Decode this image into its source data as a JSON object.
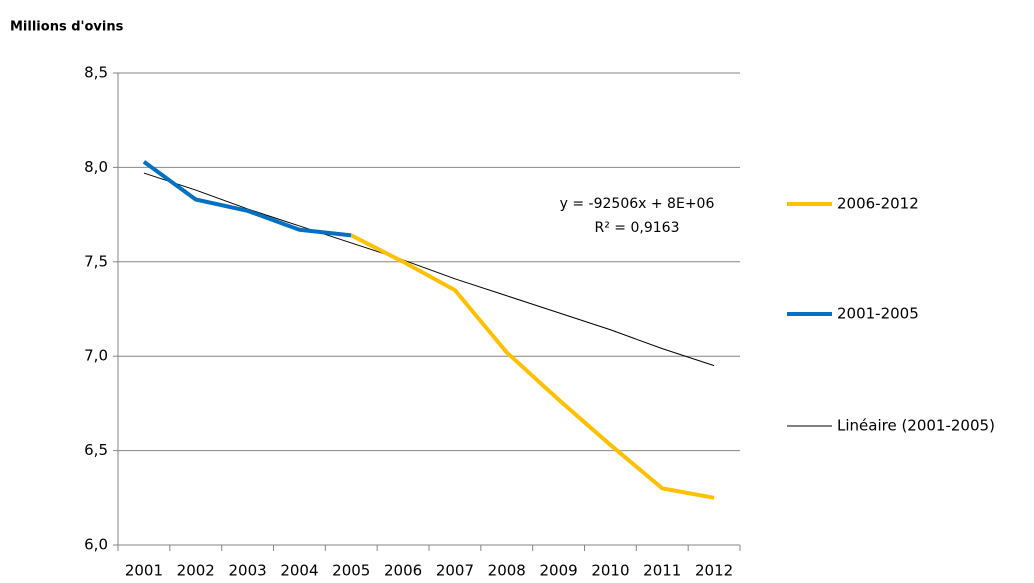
{
  "chart_data": {
    "type": "line",
    "title": "Millions d'ovins",
    "categories": [
      "2001",
      "2002",
      "2003",
      "2004",
      "2005",
      "2006",
      "2007",
      "2008",
      "2009",
      "2010",
      "2011",
      "2012"
    ],
    "series": [
      {
        "name": "2006-2012",
        "color": "#ffc000",
        "width": 4,
        "values": [
          null,
          null,
          null,
          null,
          7.64,
          7.5,
          7.35,
          7.02,
          6.77,
          6.53,
          6.3,
          6.25
        ]
      },
      {
        "name": "2001-2005",
        "color": "#0070c0",
        "width": 4,
        "values": [
          8.03,
          7.83,
          7.77,
          7.67,
          7.64,
          null,
          null,
          null,
          null,
          null,
          null,
          null
        ]
      },
      {
        "name": "Linéaire (2001-2005)",
        "color": "#000000",
        "width": 1,
        "values": [
          7.97,
          7.88,
          7.78,
          7.69,
          7.6,
          7.51,
          7.41,
          7.32,
          7.23,
          7.14,
          7.04,
          6.95
        ]
      }
    ],
    "annotations": [
      "y = -92506x + 8E+06",
      "R² = 0,9163"
    ],
    "ylim": [
      6,
      8.5
    ],
    "yticks": [
      {
        "value": 6,
        "label": "6,0"
      },
      {
        "value": 6.5,
        "label": "6,5"
      },
      {
        "value": 7,
        "label": "7,0"
      },
      {
        "value": 7.5,
        "label": "7,5"
      },
      {
        "value": 8,
        "label": "8,0"
      },
      {
        "value": 8.5,
        "label": "8,5"
      }
    ],
    "grid": true,
    "legend": "right"
  }
}
